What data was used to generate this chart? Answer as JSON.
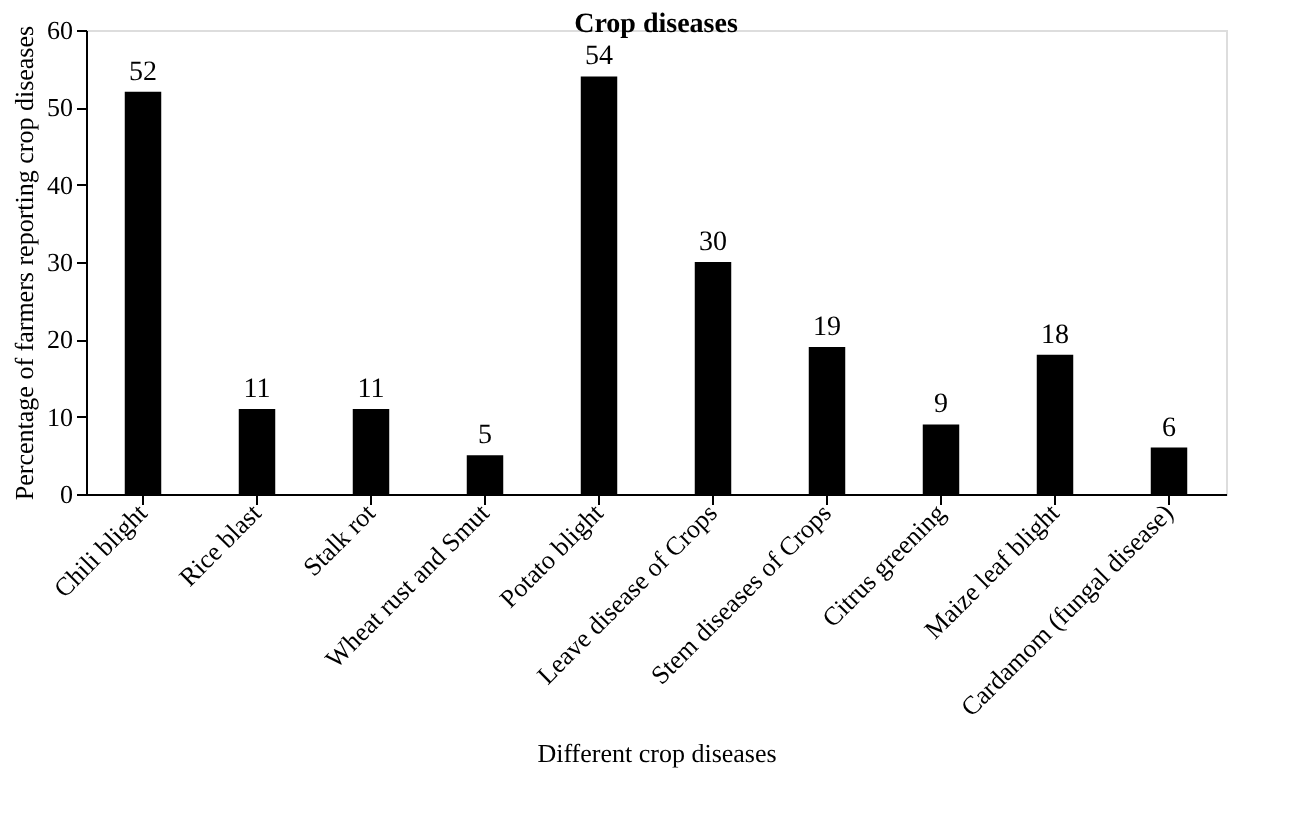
{
  "chart_data": {
    "type": "bar",
    "title": "Crop diseases",
    "xlabel": "Different crop diseases",
    "ylabel": "Percentage of farmers reporting crop diseases",
    "categories": [
      "Chili blight",
      "Rice blast",
      "Stalk rot",
      "Wheat rust and Smut",
      "Potato blight",
      "Leave disease of Crops",
      "Stem diseases of Crops",
      "Citrus greening",
      "Maize leaf blight",
      "Cardamom (fungal disease)"
    ],
    "values": [
      52,
      11,
      11,
      5,
      54,
      30,
      19,
      9,
      18,
      6
    ],
    "color": "#000000",
    "ylim": [
      0,
      60
    ],
    "yticks": [
      0,
      10,
      20,
      30,
      40,
      50,
      60
    ],
    "grid": false,
    "data_labels": true
  }
}
